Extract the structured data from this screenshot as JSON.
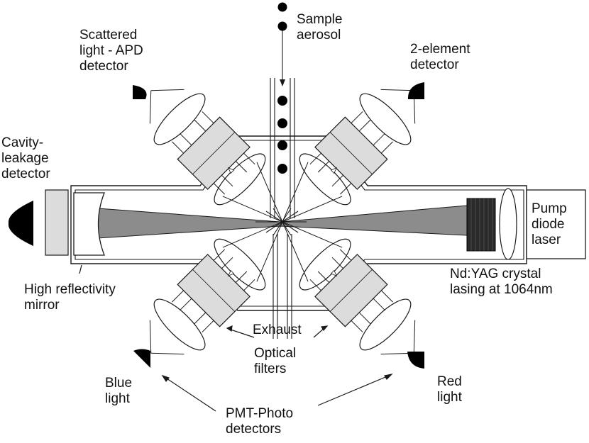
{
  "colors": {
    "line": "#1a1a1a",
    "beam": "#8c8c8c",
    "filter": "#dcdcdc",
    "crystal": "#2a2a2a",
    "detector": "#000000"
  },
  "labels": {
    "sample_aerosol": [
      "Sample",
      "aerosol"
    ],
    "scattered_light_detector": [
      "Scattered",
      "light - APD",
      "detector"
    ],
    "two_element_detector": [
      "2-element",
      "detector"
    ],
    "cavity_leakage_detector": [
      "Cavity-",
      "leakage",
      "detector"
    ],
    "pump_diode_laser": [
      "Pump",
      "diode",
      "laser"
    ],
    "high_reflectivity_mirror": [
      "High reflectivity",
      "mirror"
    ],
    "nd_yag_crystal": [
      "Nd:YAG crystal",
      "lasing at 1064nm"
    ],
    "exhaust": [
      "Exhaust"
    ],
    "optical_filters": [
      "Optical",
      "filters"
    ],
    "blue_light": [
      "Blue",
      "light"
    ],
    "red_light": [
      "Red",
      "light"
    ],
    "pmt_photo_detectors": [
      "PMT-Photo",
      "detectors"
    ]
  }
}
